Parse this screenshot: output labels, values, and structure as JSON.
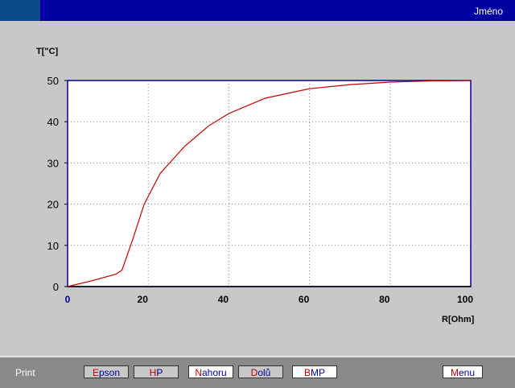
{
  "header": {
    "name": "Jméno"
  },
  "footer": {
    "print_label": "Print",
    "buttons": [
      {
        "first": "E",
        "rest": "pson",
        "bg": "#c8c8c8"
      },
      {
        "first": "H",
        "rest": "P",
        "bg": "#c8c8c8"
      },
      {
        "first": "N",
        "rest": "ahoru",
        "bg": "#ffffff"
      },
      {
        "first": "D",
        "rest": "olů",
        "bg": "#c8c8c8"
      },
      {
        "first": "B",
        "rest": "MP",
        "bg": "#ffffff"
      },
      {
        "first": "M",
        "rest": "enu",
        "bg": "#ffffff"
      }
    ]
  },
  "chart_data": {
    "type": "line",
    "xlabel": "R[Ohm]",
    "ylabel": "T[\"C]",
    "xlim": [
      0,
      100
    ],
    "ylim": [
      0,
      50
    ],
    "xticks": [
      0,
      20,
      40,
      60,
      80,
      100
    ],
    "yticks": [
      0,
      10,
      20,
      30,
      40,
      50
    ],
    "grid": true,
    "line_color": "#c00000",
    "x": [
      0,
      6,
      12,
      13.5,
      16,
      19,
      23,
      29,
      35,
      40,
      49,
      60,
      70,
      80,
      90,
      100
    ],
    "y": [
      0,
      1.4,
      3,
      4,
      11,
      20,
      27.5,
      34,
      39,
      42,
      45.7,
      48,
      49,
      49.6,
      49.9,
      50
    ]
  }
}
